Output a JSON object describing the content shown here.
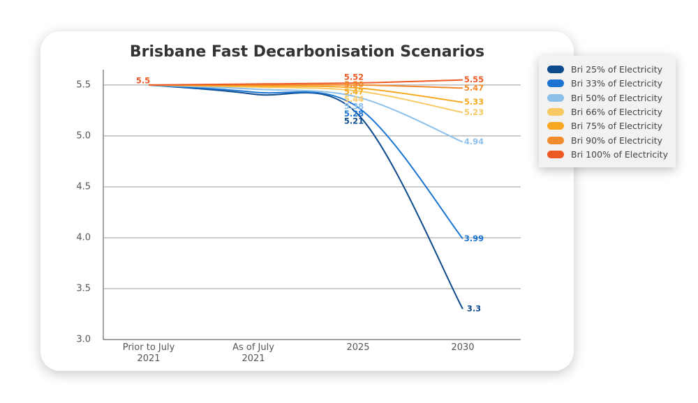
{
  "chart_data": {
    "type": "line",
    "title": "Brisbane Fast Decarbonisation Scenarios",
    "categories": [
      "Prior to July 2021",
      "As of July 2021",
      "2025",
      "2030"
    ],
    "series": [
      {
        "name": "Bri 25% of Electricity",
        "color": "#0e4b8c",
        "values": [
          5.5,
          5.41,
          5.21,
          3.3
        ],
        "value_labels": [
          null,
          null,
          "5.21",
          "3.3"
        ]
      },
      {
        "name": "Bri 33% of Electricity",
        "color": "#1b74d2",
        "values": [
          5.5,
          5.43,
          5.28,
          3.99
        ],
        "value_labels": [
          null,
          null,
          "5.28",
          "3.99"
        ]
      },
      {
        "name": "Bri 50% of Electricity",
        "color": "#8cbfea",
        "values": [
          5.5,
          5.46,
          5.38,
          4.94
        ],
        "value_labels": [
          null,
          null,
          "5.38",
          "4.94"
        ]
      },
      {
        "name": "Bri 66% of Electricity",
        "color": "#f8c963",
        "values": [
          5.5,
          5.48,
          5.44,
          5.23
        ],
        "value_labels": [
          null,
          null,
          "5.44",
          "5.23"
        ]
      },
      {
        "name": "Bri 75% of Electricity",
        "color": "#f6a821",
        "values": [
          5.5,
          5.49,
          5.47,
          5.33
        ],
        "value_labels": [
          null,
          null,
          "5.47",
          "5.33"
        ]
      },
      {
        "name": "Bri 90% of Electricity",
        "color": "#f28b2b",
        "values": [
          5.5,
          5.5,
          5.5,
          5.47
        ],
        "value_labels": [
          null,
          null,
          "5.50",
          "5.47"
        ]
      },
      {
        "name": "Bri 100% of Electricity",
        "color": "#ec5a24",
        "values": [
          5.5,
          5.51,
          5.52,
          5.55
        ],
        "value_labels": [
          "5.5",
          null,
          "5.52",
          "5.55"
        ]
      }
    ],
    "ylim": [
      3.0,
      5.65
    ],
    "yticks": [
      {
        "value": 3,
        "label": "3.0"
      },
      3.5,
      {
        "value": 4,
        "label": "4.0"
      },
      4.5,
      {
        "value": 5,
        "label": "5.0"
      },
      5.5
    ],
    "grid": true,
    "legend": "right"
  }
}
